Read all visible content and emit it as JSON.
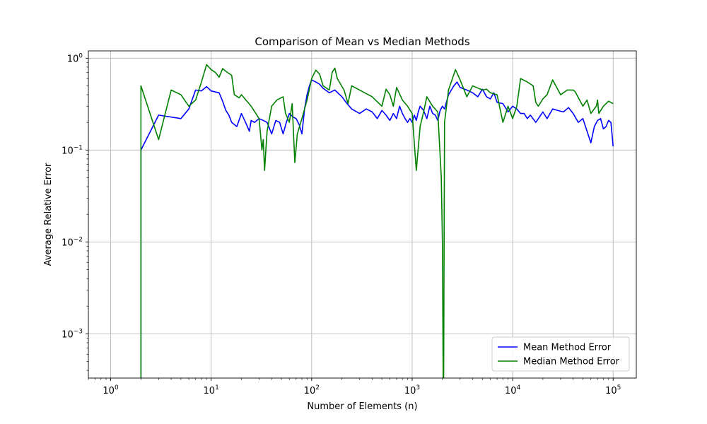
{
  "chart_data": {
    "type": "line",
    "title": "Comparison of Mean vs Median Methods",
    "xlabel": "Number of Elements (n)",
    "ylabel": "Average Relative Error",
    "xscale": "log",
    "yscale": "log",
    "xlim": [
      0.6,
      170000
    ],
    "ylim": [
      0.00033,
      1.2
    ],
    "grid": true,
    "legend_position": "lower right",
    "x_ticks": [
      {
        "value": 1,
        "base": "10",
        "exp": "0"
      },
      {
        "value": 10,
        "base": "10",
        "exp": "1"
      },
      {
        "value": 100,
        "base": "10",
        "exp": "2"
      },
      {
        "value": 1000,
        "base": "10",
        "exp": "3"
      },
      {
        "value": 10000,
        "base": "10",
        "exp": "4"
      },
      {
        "value": 100000,
        "base": "10",
        "exp": "5"
      }
    ],
    "y_ticks": [
      {
        "value": 0.001,
        "base": "10",
        "exp": "−3"
      },
      {
        "value": 0.01,
        "base": "10",
        "exp": "−2"
      },
      {
        "value": 0.1,
        "base": "10",
        "exp": "−1"
      },
      {
        "value": 1,
        "base": "10",
        "exp": "0"
      }
    ],
    "series": [
      {
        "name": "Mean Method Error",
        "color": "#0000ff",
        "points": [
          [
            2,
            0.0001
          ],
          [
            2,
            0.1
          ],
          [
            3,
            0.24
          ],
          [
            5,
            0.22
          ],
          [
            6,
            0.28
          ],
          [
            7,
            0.45
          ],
          [
            8,
            0.44
          ],
          [
            9,
            0.49
          ],
          [
            10,
            0.44
          ],
          [
            12,
            0.42
          ],
          [
            13,
            0.34
          ],
          [
            14,
            0.27
          ],
          [
            15,
            0.24
          ],
          [
            16,
            0.2
          ],
          [
            18,
            0.18
          ],
          [
            20,
            0.25
          ],
          [
            22,
            0.2
          ],
          [
            24,
            0.16
          ],
          [
            25,
            0.21
          ],
          [
            27,
            0.2
          ],
          [
            30,
            0.22
          ],
          [
            33,
            0.21
          ],
          [
            36,
            0.2
          ],
          [
            40,
            0.15
          ],
          [
            44,
            0.21
          ],
          [
            48,
            0.2
          ],
          [
            52,
            0.15
          ],
          [
            56,
            0.2
          ],
          [
            60,
            0.25
          ],
          [
            65,
            0.23
          ],
          [
            70,
            0.22
          ],
          [
            75,
            0.19
          ],
          [
            80,
            0.15
          ],
          [
            85,
            0.28
          ],
          [
            90,
            0.4
          ],
          [
            95,
            0.5
          ],
          [
            100,
            0.58
          ],
          [
            110,
            0.55
          ],
          [
            120,
            0.52
          ],
          [
            130,
            0.47
          ],
          [
            150,
            0.42
          ],
          [
            170,
            0.45
          ],
          [
            200,
            0.38
          ],
          [
            220,
            0.33
          ],
          [
            250,
            0.28
          ],
          [
            300,
            0.25
          ],
          [
            350,
            0.28
          ],
          [
            400,
            0.26
          ],
          [
            450,
            0.22
          ],
          [
            500,
            0.27
          ],
          [
            550,
            0.24
          ],
          [
            600,
            0.21
          ],
          [
            650,
            0.25
          ],
          [
            700,
            0.22
          ],
          [
            750,
            0.3
          ],
          [
            800,
            0.25
          ],
          [
            850,
            0.22
          ],
          [
            900,
            0.2
          ],
          [
            950,
            0.22
          ],
          [
            1000,
            0.2
          ],
          [
            1050,
            0.24
          ],
          [
            1100,
            0.21
          ],
          [
            1150,
            0.26
          ],
          [
            1200,
            0.3
          ],
          [
            1300,
            0.27
          ],
          [
            1400,
            0.22
          ],
          [
            1500,
            0.3
          ],
          [
            1600,
            0.25
          ],
          [
            1700,
            0.24
          ],
          [
            1800,
            0.21
          ],
          [
            1900,
            0.27
          ],
          [
            2000,
            0.3
          ],
          [
            2100,
            0.28
          ],
          [
            2300,
            0.4
          ],
          [
            2600,
            0.5
          ],
          [
            2800,
            0.55
          ],
          [
            3000,
            0.48
          ],
          [
            3500,
            0.45
          ],
          [
            4000,
            0.42
          ],
          [
            4500,
            0.38
          ],
          [
            5000,
            0.46
          ],
          [
            5500,
            0.38
          ],
          [
            6000,
            0.36
          ],
          [
            6500,
            0.42
          ],
          [
            7000,
            0.33
          ],
          [
            8000,
            0.32
          ],
          [
            9000,
            0.26
          ],
          [
            10000,
            0.3
          ],
          [
            11000,
            0.28
          ],
          [
            12000,
            0.25
          ],
          [
            13000,
            0.25
          ],
          [
            14000,
            0.22
          ],
          [
            15000,
            0.24
          ],
          [
            17000,
            0.2
          ],
          [
            20000,
            0.26
          ],
          [
            22000,
            0.22
          ],
          [
            25000,
            0.28
          ],
          [
            28000,
            0.27
          ],
          [
            32000,
            0.26
          ],
          [
            36000,
            0.29
          ],
          [
            40000,
            0.25
          ],
          [
            45000,
            0.2
          ],
          [
            50000,
            0.22
          ],
          [
            55000,
            0.16
          ],
          [
            60000,
            0.12
          ],
          [
            65000,
            0.18
          ],
          [
            70000,
            0.21
          ],
          [
            75000,
            0.22
          ],
          [
            80000,
            0.17
          ],
          [
            85000,
            0.18
          ],
          [
            90000,
            0.21
          ],
          [
            95000,
            0.2
          ],
          [
            100000,
            0.11
          ]
        ]
      },
      {
        "name": "Median Method Error",
        "color": "#008000",
        "points": [
          [
            2,
            0.0001
          ],
          [
            2,
            0.5
          ],
          [
            3,
            0.13
          ],
          [
            4,
            0.45
          ],
          [
            5,
            0.4
          ],
          [
            6,
            0.3
          ],
          [
            7,
            0.35
          ],
          [
            8,
            0.55
          ],
          [
            9,
            0.85
          ],
          [
            10,
            0.75
          ],
          [
            11,
            0.7
          ],
          [
            12,
            0.62
          ],
          [
            13,
            0.77
          ],
          [
            14,
            0.72
          ],
          [
            16,
            0.65
          ],
          [
            17,
            0.4
          ],
          [
            19,
            0.37
          ],
          [
            20,
            0.4
          ],
          [
            25,
            0.3
          ],
          [
            30,
            0.22
          ],
          [
            32,
            0.1
          ],
          [
            33,
            0.13
          ],
          [
            34,
            0.06
          ],
          [
            36,
            0.16
          ],
          [
            40,
            0.3
          ],
          [
            45,
            0.35
          ],
          [
            52,
            0.38
          ],
          [
            55,
            0.25
          ],
          [
            60,
            0.2
          ],
          [
            64,
            0.32
          ],
          [
            68,
            0.073
          ],
          [
            72,
            0.15
          ],
          [
            80,
            0.22
          ],
          [
            90,
            0.35
          ],
          [
            100,
            0.6
          ],
          [
            110,
            0.74
          ],
          [
            120,
            0.67
          ],
          [
            130,
            0.5
          ],
          [
            150,
            0.45
          ],
          [
            160,
            0.7
          ],
          [
            170,
            0.78
          ],
          [
            180,
            0.6
          ],
          [
            210,
            0.45
          ],
          [
            230,
            0.32
          ],
          [
            250,
            0.5
          ],
          [
            400,
            0.38
          ],
          [
            500,
            0.3
          ],
          [
            550,
            0.46
          ],
          [
            600,
            0.4
          ],
          [
            650,
            0.3
          ],
          [
            700,
            0.48
          ],
          [
            800,
            0.35
          ],
          [
            900,
            0.3
          ],
          [
            1000,
            0.25
          ],
          [
            1050,
            0.12
          ],
          [
            1100,
            0.06
          ],
          [
            1200,
            0.18
          ],
          [
            1300,
            0.26
          ],
          [
            1400,
            0.38
          ],
          [
            1600,
            0.3
          ],
          [
            1800,
            0.26
          ],
          [
            1950,
            0.05
          ],
          [
            2000,
            0.01
          ],
          [
            2050,
            0.0001
          ],
          [
            2100,
            0.2
          ],
          [
            2300,
            0.45
          ],
          [
            2700,
            0.75
          ],
          [
            3000,
            0.58
          ],
          [
            3500,
            0.38
          ],
          [
            4000,
            0.5
          ],
          [
            5000,
            0.45
          ],
          [
            5500,
            0.46
          ],
          [
            6000,
            0.42
          ],
          [
            7000,
            0.4
          ],
          [
            8000,
            0.2
          ],
          [
            9000,
            0.3
          ],
          [
            10000,
            0.22
          ],
          [
            11000,
            0.3
          ],
          [
            12000,
            0.6
          ],
          [
            14000,
            0.55
          ],
          [
            16000,
            0.5
          ],
          [
            17000,
            0.33
          ],
          [
            18000,
            0.3
          ],
          [
            20000,
            0.36
          ],
          [
            22000,
            0.4
          ],
          [
            25000,
            0.58
          ],
          [
            30000,
            0.4
          ],
          [
            35000,
            0.45
          ],
          [
            40000,
            0.45
          ],
          [
            42000,
            0.43
          ],
          [
            50000,
            0.3
          ],
          [
            55000,
            0.35
          ],
          [
            60000,
            0.25
          ],
          [
            68000,
            0.3
          ],
          [
            70000,
            0.35
          ],
          [
            72000,
            0.25
          ],
          [
            80000,
            0.3
          ],
          [
            90000,
            0.34
          ],
          [
            100000,
            0.32
          ]
        ]
      }
    ]
  }
}
